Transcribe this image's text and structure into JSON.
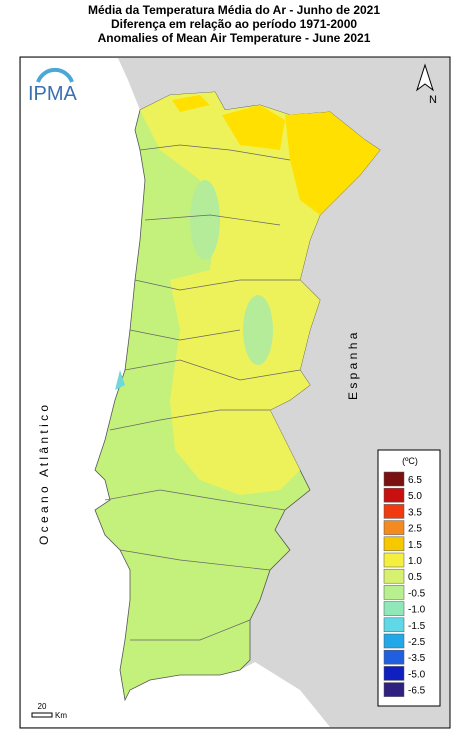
{
  "header": {
    "lines": [
      "Média da Temperatura Média do Ar - Junho de 2021",
      "Diferença em relação ao período 1971-2000",
      "Anomalies of Mean Air Temperature - June 2021"
    ]
  },
  "logo": {
    "text": "IPMA"
  },
  "north_arrow": {
    "label": "N"
  },
  "map_labels": {
    "ocean": "O c e a n o   A t l â n t i c o",
    "spain": "E s p a n h a"
  },
  "legend": {
    "unit": "(ºC)",
    "items": [
      {
        "label": "6.5",
        "color": "#7a1010"
      },
      {
        "label": "5.0",
        "color": "#c81010"
      },
      {
        "label": "3.5",
        "color": "#f03a10"
      },
      {
        "label": "2.5",
        "color": "#f58a20"
      },
      {
        "label": "1.5",
        "color": "#f5c800"
      },
      {
        "label": "1.0",
        "color": "#f5f040"
      },
      {
        "label": "0.5",
        "color": "#d8f070"
      },
      {
        "label": "-0.5",
        "color": "#b8f090"
      },
      {
        "label": "-1.0",
        "color": "#90e8b8"
      },
      {
        "label": "-1.5",
        "color": "#60d8e8"
      },
      {
        "label": "-2.5",
        "color": "#20a8e8"
      },
      {
        "label": "-3.5",
        "color": "#2060e0"
      },
      {
        "label": "-5.0",
        "color": "#1020c0"
      },
      {
        "label": "-6.5",
        "color": "#302080"
      }
    ]
  },
  "scale_bar": {
    "value": "20",
    "unit": "Km"
  }
}
